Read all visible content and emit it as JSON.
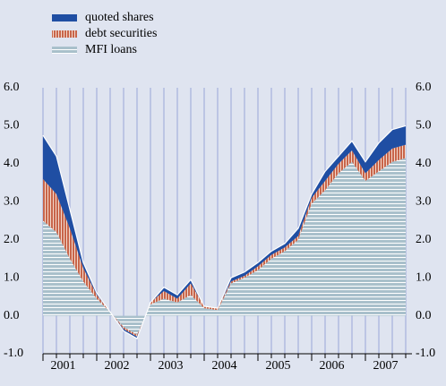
{
  "chart_data": {
    "type": "stacked_area",
    "categories": [
      null,
      "2001",
      null,
      null,
      null,
      "2002",
      null,
      null,
      null,
      "2003",
      null,
      null,
      null,
      "2004",
      null,
      null,
      null,
      "2005",
      null,
      null,
      null,
      "2006",
      null,
      null,
      null,
      "2007",
      null,
      null
    ],
    "series": [
      {
        "name": "MFI loans",
        "color": "#a9c0cb",
        "values": [
          2.5,
          2.2,
          1.5,
          0.9,
          0.45,
          0.1,
          -0.3,
          -0.5,
          0.3,
          0.45,
          0.35,
          0.55,
          0.2,
          0.15,
          0.85,
          1.0,
          1.2,
          1.5,
          1.7,
          2.0,
          2.95,
          3.3,
          3.75,
          4.05,
          3.55,
          3.8,
          4.05,
          4.15
        ]
      },
      {
        "name": "debt securities",
        "color": "#c8654a",
        "values": [
          1.1,
          1.0,
          0.8,
          0.35,
          0.1,
          0,
          -0.05,
          -0.05,
          0.05,
          0.2,
          0.1,
          0.3,
          0.05,
          0.05,
          0.05,
          0.05,
          0.1,
          0.1,
          0.1,
          0.1,
          0.15,
          0.25,
          0.25,
          0.3,
          0.2,
          0.3,
          0.35,
          0.35
        ]
      },
      {
        "name": "quoted shares",
        "color": "#1f4ea3",
        "values": [
          1.15,
          1.0,
          0.5,
          0.15,
          0.05,
          0,
          -0.05,
          -0.05,
          0,
          0.1,
          0.1,
          0.1,
          0,
          0,
          0.1,
          0.1,
          0.1,
          0.1,
          0.1,
          0.2,
          0.1,
          0.25,
          0.2,
          0.25,
          0.3,
          0.45,
          0.5,
          0.5
        ]
      }
    ],
    "ylim": [
      -1.0,
      6.0
    ],
    "yticks": [
      {
        "value": -1,
        "label": "-1.0"
      },
      {
        "value": 0,
        "label": "0.0"
      },
      {
        "value": 1,
        "label": "1.0"
      },
      {
        "value": 2,
        "label": "2.0"
      },
      {
        "value": 3,
        "label": "3.0"
      },
      {
        "value": 4,
        "label": "4.0"
      },
      {
        "value": 5,
        "label": "5.0"
      },
      {
        "value": 6,
        "label": "6.0"
      }
    ],
    "y2lim": [
      -1.0,
      6.0
    ],
    "y2ticks": [
      {
        "value": -1,
        "label": "-1.0"
      },
      {
        "value": 0,
        "label": "0.0"
      },
      {
        "value": 1,
        "label": "1.0"
      },
      {
        "value": 2,
        "label": "2.0"
      },
      {
        "value": 3,
        "label": "3.0"
      },
      {
        "value": 4,
        "label": "4.0"
      },
      {
        "value": 5,
        "label": "5.0"
      },
      {
        "value": 6,
        "label": "6.0"
      }
    ],
    "legend": "top-left"
  }
}
